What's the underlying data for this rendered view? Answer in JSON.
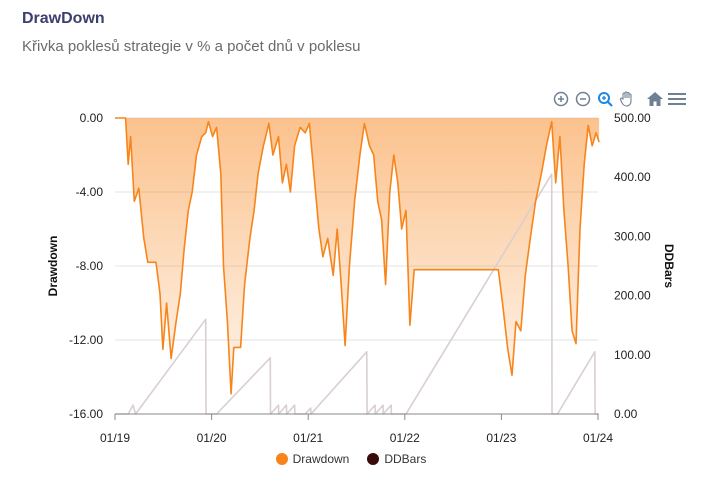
{
  "header": {
    "title": "DrawDown",
    "subtitle": "Křivka poklesů strategie v % a počet dnů v poklesu"
  },
  "toolbar": {
    "icons": [
      "zoom-in-icon",
      "zoom-out-icon",
      "zoom-select-icon",
      "pan-hand-icon",
      "home-reset-icon",
      "menu-icon"
    ],
    "active_color": "#1e88e5",
    "idle_color": "#6e8192"
  },
  "chart_data": {
    "type": "area",
    "x_ticks": [
      "01/19",
      "01/20",
      "01/21",
      "01/22",
      "01/23",
      "01/24"
    ],
    "y_left": {
      "label": "Drawdown",
      "ticks": [
        "0.00",
        "-4.00",
        "-8.00",
        "-12.00",
        "-16.00"
      ],
      "range": [
        -16,
        0
      ]
    },
    "y_right": {
      "label": "DDBars",
      "ticks": [
        "500.00",
        "400.00",
        "300.00",
        "200.00",
        "100.00",
        "0.00"
      ],
      "range": [
        0,
        500
      ]
    },
    "x_range": [
      "2019-01-01",
      "2024-01-01"
    ],
    "grid": true,
    "legend_position": "bottom",
    "series": [
      {
        "name": "Drawdown",
        "axis": "left",
        "color": "#f7851b",
        "points": [
          [
            "2019-01-01",
            0
          ],
          [
            "2019-02-10",
            0
          ],
          [
            "2019-02-20",
            -2.5
          ],
          [
            "2019-03-01",
            -1.0
          ],
          [
            "2019-03-15",
            -4.5
          ],
          [
            "2019-04-01",
            -3.8
          ],
          [
            "2019-04-20",
            -6.5
          ],
          [
            "2019-05-05",
            -7.8
          ],
          [
            "2019-06-05",
            -7.8
          ],
          [
            "2019-06-20",
            -9.5
          ],
          [
            "2019-07-01",
            -12.5
          ],
          [
            "2019-07-15",
            -10.0
          ],
          [
            "2019-08-01",
            -13.0
          ],
          [
            "2019-08-20",
            -11.0
          ],
          [
            "2019-09-05",
            -9.5
          ],
          [
            "2019-09-20",
            -7.0
          ],
          [
            "2019-10-05",
            -5.0
          ],
          [
            "2019-10-20",
            -4.0
          ],
          [
            "2019-11-05",
            -2.0
          ],
          [
            "2019-11-25",
            -1.0
          ],
          [
            "2019-12-10",
            -0.8
          ],
          [
            "2019-12-20",
            -0.2
          ],
          [
            "2020-01-05",
            -1.0
          ],
          [
            "2020-01-20",
            -0.5
          ],
          [
            "2020-02-05",
            -3.0
          ],
          [
            "2020-02-15",
            -8.0
          ],
          [
            "2020-03-01",
            -11.0
          ],
          [
            "2020-03-15",
            -14.9
          ],
          [
            "2020-03-25",
            -12.4
          ],
          [
            "2020-04-20",
            -12.4
          ],
          [
            "2020-05-05",
            -9.0
          ],
          [
            "2020-05-25",
            -6.5
          ],
          [
            "2020-06-10",
            -5.0
          ],
          [
            "2020-06-25",
            -3.0
          ],
          [
            "2020-07-15",
            -1.5
          ],
          [
            "2020-08-05",
            -0.3
          ],
          [
            "2020-08-20",
            -2.0
          ],
          [
            "2020-09-10",
            -1.0
          ],
          [
            "2020-09-25",
            -3.5
          ],
          [
            "2020-10-10",
            -2.5
          ],
          [
            "2020-10-25",
            -4.0
          ],
          [
            "2020-11-10",
            -1.5
          ],
          [
            "2020-12-01",
            -0.5
          ],
          [
            "2020-12-20",
            -0.8
          ],
          [
            "2021-01-05",
            -0.3
          ],
          [
            "2021-01-25",
            -3.5
          ],
          [
            "2021-02-10",
            -6.0
          ],
          [
            "2021-02-25",
            -7.5
          ],
          [
            "2021-03-15",
            -6.5
          ],
          [
            "2021-04-05",
            -8.5
          ],
          [
            "2021-04-20",
            -6.0
          ],
          [
            "2021-05-05",
            -9.0
          ],
          [
            "2021-05-20",
            -12.3
          ],
          [
            "2021-06-05",
            -8.0
          ],
          [
            "2021-06-25",
            -4.5
          ],
          [
            "2021-07-15",
            -2.0
          ],
          [
            "2021-08-01",
            -0.3
          ],
          [
            "2021-08-20",
            -1.5
          ],
          [
            "2021-09-05",
            -2.0
          ],
          [
            "2021-09-20",
            -4.5
          ],
          [
            "2021-10-05",
            -5.5
          ],
          [
            "2021-10-20",
            -9.0
          ],
          [
            "2021-11-05",
            -4.0
          ],
          [
            "2021-11-20",
            -2.0
          ],
          [
            "2021-12-05",
            -3.5
          ],
          [
            "2021-12-20",
            -6.0
          ],
          [
            "2022-01-05",
            -5.0
          ],
          [
            "2022-01-20",
            -11.2
          ],
          [
            "2022-02-05",
            -8.2
          ],
          [
            "2022-12-20",
            -8.2
          ],
          [
            "2023-01-05",
            -10.0
          ],
          [
            "2023-01-25",
            -12.5
          ],
          [
            "2023-02-10",
            -13.9
          ],
          [
            "2023-02-25",
            -11.0
          ],
          [
            "2023-03-15",
            -11.5
          ],
          [
            "2023-04-01",
            -8.5
          ],
          [
            "2023-04-20",
            -6.5
          ],
          [
            "2023-05-10",
            -4.5
          ],
          [
            "2023-06-01",
            -3.0
          ],
          [
            "2023-06-20",
            -1.5
          ],
          [
            "2023-07-10",
            -0.2
          ],
          [
            "2023-07-25",
            -3.5
          ],
          [
            "2023-08-10",
            -1.0
          ],
          [
            "2023-08-25",
            -5.0
          ],
          [
            "2023-09-10",
            -8.0
          ],
          [
            "2023-09-25",
            -11.5
          ],
          [
            "2023-10-10",
            -12.2
          ],
          [
            "2023-10-25",
            -6.0
          ],
          [
            "2023-11-10",
            -2.5
          ],
          [
            "2023-11-25",
            -0.4
          ],
          [
            "2023-12-10",
            -1.5
          ],
          [
            "2023-12-25",
            -0.8
          ],
          [
            "2024-01-05",
            -1.3
          ]
        ]
      },
      {
        "name": "DDBars",
        "axis": "right",
        "color": "#3a0b0b",
        "line_color": "#d9cfcf",
        "points": [
          [
            "2019-01-01",
            0
          ],
          [
            "2019-02-20",
            0
          ],
          [
            "2019-03-10",
            15
          ],
          [
            "2019-03-20",
            0
          ],
          [
            "2019-12-10",
            160
          ],
          [
            "2019-12-11",
            0
          ],
          [
            "2020-01-20",
            0
          ],
          [
            "2020-08-10",
            95
          ],
          [
            "2020-08-11",
            0
          ],
          [
            "2020-09-10",
            15
          ],
          [
            "2020-09-11",
            0
          ],
          [
            "2020-10-10",
            15
          ],
          [
            "2020-10-11",
            0
          ],
          [
            "2020-11-10",
            15
          ],
          [
            "2020-11-11",
            0
          ],
          [
            "2020-12-20",
            0
          ],
          [
            "2021-01-10",
            10
          ],
          [
            "2021-01-11",
            0
          ],
          [
            "2021-08-10",
            105
          ],
          [
            "2021-08-11",
            0
          ],
          [
            "2021-09-10",
            15
          ],
          [
            "2021-09-11",
            0
          ],
          [
            "2021-10-10",
            15
          ],
          [
            "2021-10-11",
            0
          ],
          [
            "2021-11-10",
            15
          ],
          [
            "2021-11-11",
            0
          ],
          [
            "2022-01-05",
            0
          ],
          [
            "2023-07-10",
            405
          ],
          [
            "2023-07-11",
            0
          ],
          [
            "2023-08-01",
            0
          ],
          [
            "2023-12-20",
            105
          ],
          [
            "2023-12-21",
            0
          ],
          [
            "2024-01-05",
            0
          ]
        ]
      }
    ]
  }
}
